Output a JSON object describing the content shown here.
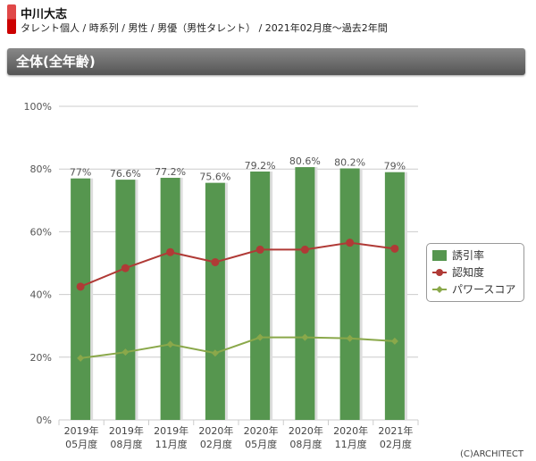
{
  "header": {
    "name": "中川大志",
    "breadcrumb": "タレント個人 / 時系列 / 男性 / 男優（男性タレント） / 2021年02月度～過去2年間"
  },
  "section_title": "全体(全年齢)",
  "copyright": "(C)ARCHITECT",
  "chart_data": {
    "type": "bar",
    "categories": [
      [
        "2019年",
        "05月度"
      ],
      [
        "2019年",
        "08月度"
      ],
      [
        "2019年",
        "11月度"
      ],
      [
        "2020年",
        "02月度"
      ],
      [
        "2020年",
        "05月度"
      ],
      [
        "2020年",
        "08月度"
      ],
      [
        "2020年",
        "11月度"
      ],
      [
        "2021年",
        "02月度"
      ]
    ],
    "yticks": [
      "0%",
      "20%",
      "40%",
      "60%",
      "80%",
      "100%"
    ],
    "ylim": [
      0,
      100
    ],
    "series": [
      {
        "name": "誘引率",
        "type": "bar",
        "color": "#56964f",
        "values": [
          77,
          76.6,
          77.2,
          75.6,
          79.2,
          80.6,
          80.2,
          79
        ],
        "labels": [
          "77%",
          "76.6%",
          "77.2%",
          "75.6%",
          "79.2%",
          "80.6%",
          "80.2%",
          "79%"
        ]
      },
      {
        "name": "認知度",
        "type": "line",
        "color": "#b03a36",
        "values": [
          42.5,
          48.4,
          53.5,
          50.3,
          54.3,
          54.3,
          56.5,
          54.6
        ]
      },
      {
        "name": "パワースコア",
        "type": "line",
        "color": "#8aa84a",
        "values": [
          19.7,
          21.6,
          24.1,
          21.3,
          26.3,
          26.3,
          26.0,
          25.1
        ]
      }
    ],
    "legend": "right"
  }
}
